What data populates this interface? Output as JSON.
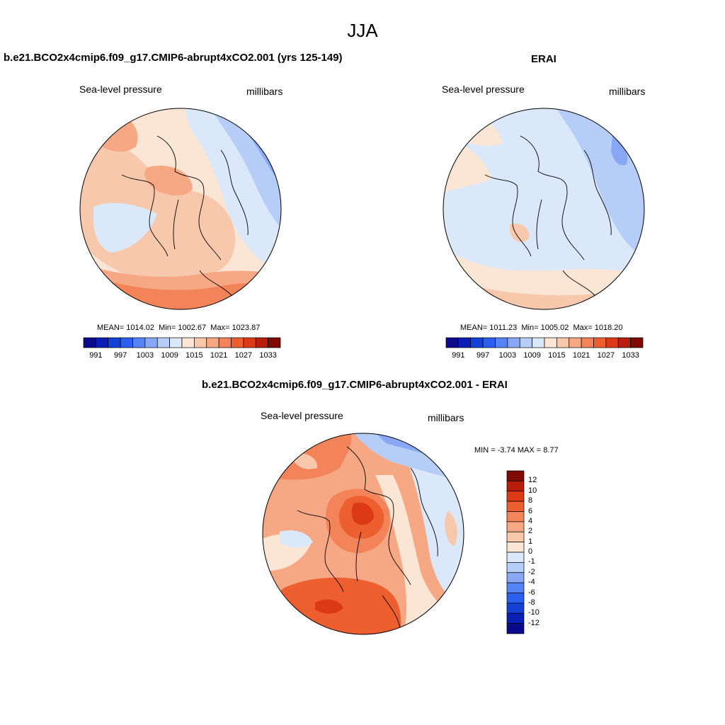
{
  "figure": {
    "title": "JJA"
  },
  "panels": [
    {
      "id": "model",
      "title": "b.e21.BCO2x4cmip6.f09_g17.CMIP6-abrupt4xCO2.001 (yrs 125-149)",
      "left_label": "Sea-level pressure",
      "right_label": "millibars",
      "stats": {
        "mean_label": "MEAN=",
        "mean": "1014.02",
        "min_label": "Min=",
        "min": "1002.67",
        "max_label": "Max=",
        "max": "1023.87"
      }
    },
    {
      "id": "erai",
      "title": "ERAI",
      "left_label": "Sea-level pressure",
      "right_label": "millibars",
      "stats": {
        "mean_label": "MEAN=",
        "mean": "1011.23",
        "min_label": "Min=",
        "min": "1005.02",
        "max_label": "Max=",
        "max": "1018.20"
      }
    },
    {
      "id": "diff",
      "title": "b.e21.BCO2x4cmip6.f09_g17.CMIP6-abrupt4xCO2.001 - ERAI",
      "left_label": "Sea-level pressure",
      "right_label": "millibars",
      "stats": {
        "min_label": "MIN =",
        "min": "-3.74",
        "max_label": "MAX =",
        "max": "8.77"
      }
    }
  ],
  "colorbar_slp": {
    "colors": [
      "#0a0a8c",
      "#0b1fb4",
      "#1540d6",
      "#2a5ff0",
      "#5585f5",
      "#88a8f5",
      "#b6cdf7",
      "#dbe8f9",
      "#fbe6d6",
      "#f8c8ad",
      "#f6a784",
      "#f3845a",
      "#ee5f30",
      "#dc3a16",
      "#b81d0c",
      "#7f0a04"
    ],
    "tick_labels": [
      "991",
      "997",
      "1003",
      "1009",
      "1015",
      "1021",
      "1027",
      "1033"
    ]
  },
  "colorbar_diff": {
    "colors": [
      "#7f0a04",
      "#b81d0c",
      "#dc3a16",
      "#ee5f30",
      "#f3845a",
      "#f6a784",
      "#f8c8ad",
      "#fbe6d6",
      "#dbe8f9",
      "#b6cdf7",
      "#88a8f5",
      "#5585f5",
      "#2a5ff0",
      "#1540d6",
      "#0b1fb4",
      "#0a0a8c"
    ],
    "tick_labels": [
      "12",
      "10",
      "8",
      "6",
      "4",
      "2",
      "1",
      "0",
      "-1",
      "-2",
      "-4",
      "-6",
      "-8",
      "-10",
      "-12"
    ]
  },
  "colors": {
    "positive_light": "#fbe6d6",
    "positive_mid": "#f6a784",
    "positive_strong": "#ee5f30",
    "negative_light": "#dbe8f9",
    "negative_mid": "#b6cdf7",
    "negative_strong": "#5585f5"
  }
}
